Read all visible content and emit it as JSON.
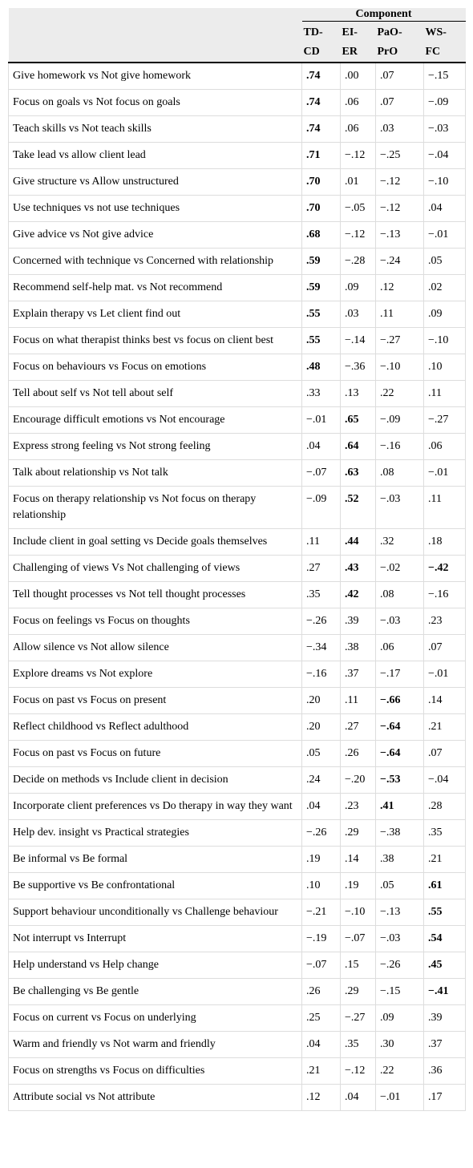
{
  "table": {
    "group_header": "Component",
    "columns": [
      "TD-CD",
      "EI-ER",
      "PaO-PrO",
      "WS-FC"
    ],
    "rows": [
      {
        "label": "Give homework vs Not give homework",
        "values": [
          ".74",
          ".00",
          ".07",
          "−.15"
        ],
        "bold": [
          0
        ]
      },
      {
        "label": "Focus on goals vs Not focus on goals",
        "values": [
          ".74",
          ".06",
          ".07",
          "−.09"
        ],
        "bold": [
          0
        ]
      },
      {
        "label": "Teach skills vs Not teach skills",
        "values": [
          ".74",
          ".06",
          ".03",
          "−.03"
        ],
        "bold": [
          0
        ]
      },
      {
        "label": "Take lead vs allow client lead",
        "values": [
          ".71",
          "−.12",
          "−.25",
          "−.04"
        ],
        "bold": [
          0
        ]
      },
      {
        "label": "Give structure vs Allow unstructured",
        "values": [
          ".70",
          ".01",
          "−.12",
          "−.10"
        ],
        "bold": [
          0
        ]
      },
      {
        "label": "Use techniques vs not use techniques",
        "values": [
          ".70",
          "−.05",
          "−.12",
          ".04"
        ],
        "bold": [
          0
        ]
      },
      {
        "label": "Give advice vs Not give advice",
        "values": [
          ".68",
          "−.12",
          "−.13",
          "−.01"
        ],
        "bold": [
          0
        ]
      },
      {
        "label": "Concerned with technique vs Concerned with relationship",
        "values": [
          ".59",
          "−.28",
          "−.24",
          ".05"
        ],
        "bold": [
          0
        ]
      },
      {
        "label": "Recommend self-help mat. vs Not recommend",
        "values": [
          ".59",
          ".09",
          ".12",
          ".02"
        ],
        "bold": [
          0
        ]
      },
      {
        "label": "Explain therapy vs Let client find out",
        "values": [
          ".55",
          ".03",
          ".11",
          ".09"
        ],
        "bold": [
          0
        ]
      },
      {
        "label": "Focus on what therapist thinks best vs focus on client best",
        "values": [
          ".55",
          "−.14",
          "−.27",
          "−.10"
        ],
        "bold": [
          0
        ]
      },
      {
        "label": "Focus on behaviours vs Focus on emotions",
        "values": [
          ".48",
          "−.36",
          "−.10",
          ".10"
        ],
        "bold": [
          0
        ]
      },
      {
        "label": "Tell about self vs Not tell about self",
        "values": [
          ".33",
          ".13",
          ".22",
          ".11"
        ],
        "bold": []
      },
      {
        "label": "Encourage difficult emotions vs Not encourage",
        "values": [
          "−.01",
          ".65",
          "−.09",
          "−.27"
        ],
        "bold": [
          1
        ]
      },
      {
        "label": "Express strong feeling vs Not strong feeling",
        "values": [
          ".04",
          ".64",
          "−.16",
          ".06"
        ],
        "bold": [
          1
        ]
      },
      {
        "label": "Talk about relationship vs Not talk",
        "values": [
          "−.07",
          ".63",
          ".08",
          "−.01"
        ],
        "bold": [
          1
        ]
      },
      {
        "label": "Focus on therapy relationship vs Not focus on therapy relationship",
        "values": [
          "−.09",
          ".52",
          "−.03",
          ".11"
        ],
        "bold": [
          1
        ]
      },
      {
        "label": "Include client in goal setting vs Decide goals themselves",
        "values": [
          ".11",
          ".44",
          ".32",
          ".18"
        ],
        "bold": [
          1
        ]
      },
      {
        "label": "Challenging of views Vs Not challenging of views",
        "values": [
          ".27",
          ".43",
          "−.02",
          "−.42"
        ],
        "bold": [
          1,
          3
        ]
      },
      {
        "label": "Tell thought processes vs Not tell thought processes",
        "values": [
          ".35",
          ".42",
          ".08",
          "−.16"
        ],
        "bold": [
          1
        ]
      },
      {
        "label": "Focus on feelings vs Focus on thoughts",
        "values": [
          "−.26",
          ".39",
          "−.03",
          ".23"
        ],
        "bold": []
      },
      {
        "label": "Allow silence vs Not allow silence",
        "values": [
          "−.34",
          ".38",
          ".06",
          ".07"
        ],
        "bold": []
      },
      {
        "label": "Explore dreams vs Not explore",
        "values": [
          "−.16",
          ".37",
          "−.17",
          "−.01"
        ],
        "bold": []
      },
      {
        "label": "Focus on past vs Focus on present",
        "values": [
          ".20",
          ".11",
          "−.66",
          ".14"
        ],
        "bold": [
          2
        ]
      },
      {
        "label": "Reflect childhood vs Reflect adulthood",
        "values": [
          ".20",
          ".27",
          "−.64",
          ".21"
        ],
        "bold": [
          2
        ]
      },
      {
        "label": "Focus on past vs Focus on future",
        "values": [
          ".05",
          ".26",
          "−.64",
          ".07"
        ],
        "bold": [
          2
        ]
      },
      {
        "label": "Decide on methods vs Include client in decision",
        "values": [
          ".24",
          "−.20",
          "−.53",
          "−.04"
        ],
        "bold": [
          2
        ]
      },
      {
        "label": "Incorporate client preferences vs Do therapy in way they want",
        "values": [
          ".04",
          ".23",
          ".41",
          ".28"
        ],
        "bold": [
          2
        ]
      },
      {
        "label": "Help dev. insight vs Practical strategies",
        "values": [
          "−.26",
          ".29",
          "−.38",
          ".35"
        ],
        "bold": []
      },
      {
        "label": "Be informal vs Be formal",
        "values": [
          ".19",
          ".14",
          ".38",
          ".21"
        ],
        "bold": []
      },
      {
        "label": "Be supportive vs Be confrontational",
        "values": [
          ".10",
          ".19",
          ".05",
          ".61"
        ],
        "bold": [
          3
        ]
      },
      {
        "label": "Support behaviour unconditionally vs Challenge behaviour",
        "values": [
          "−.21",
          "−.10",
          "−.13",
          ".55"
        ],
        "bold": [
          3
        ]
      },
      {
        "label": "Not interrupt vs Interrupt",
        "values": [
          "−.19",
          "−.07",
          "−.03",
          ".54"
        ],
        "bold": [
          3
        ]
      },
      {
        "label": "Help understand vs Help change",
        "values": [
          "−.07",
          ".15",
          "−.26",
          ".45"
        ],
        "bold": [
          3
        ]
      },
      {
        "label": "Be challenging vs Be gentle",
        "values": [
          ".26",
          ".29",
          "−.15",
          "−.41"
        ],
        "bold": [
          3
        ]
      },
      {
        "label": "Focus on current vs Focus on underlying",
        "values": [
          ".25",
          "−.27",
          ".09",
          ".39"
        ],
        "bold": []
      },
      {
        "label": "Warm and friendly vs Not warm and friendly",
        "values": [
          ".04",
          ".35",
          ".30",
          ".37"
        ],
        "bold": []
      },
      {
        "label": "Focus on strengths vs Focus on difficulties",
        "values": [
          ".21",
          "−.12",
          ".22",
          ".36"
        ],
        "bold": []
      },
      {
        "label": "Attribute social vs Not attribute",
        "values": [
          ".12",
          ".04",
          "−.01",
          ".17"
        ],
        "bold": []
      }
    ]
  }
}
